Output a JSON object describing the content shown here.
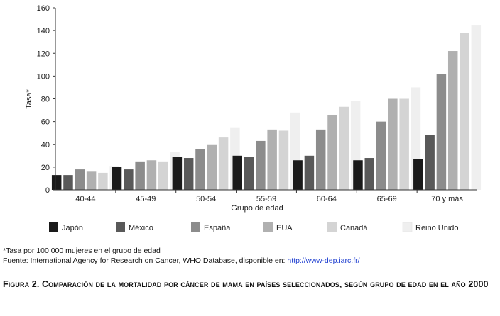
{
  "chart_data": {
    "type": "bar",
    "title": "",
    "xlabel": "Grupo de edad",
    "ylabel": "Tasa*",
    "ylim": [
      0,
      160
    ],
    "yticks": [
      0,
      20,
      40,
      60,
      80,
      100,
      120,
      140,
      160
    ],
    "categories": [
      "40-44",
      "45-49",
      "50-54",
      "55-59",
      "60-64",
      "65-69",
      "70 y más"
    ],
    "series": [
      {
        "name": "Japón",
        "color": "#1a1a1a",
        "values": [
          13,
          20,
          29,
          30,
          26,
          26,
          27
        ]
      },
      {
        "name": "México",
        "color": "#595959",
        "values": [
          13,
          18,
          28,
          29,
          30,
          28,
          48
        ]
      },
      {
        "name": "España",
        "color": "#8c8c8c",
        "values": [
          18,
          25,
          36,
          43,
          53,
          60,
          102
        ]
      },
      {
        "name": "EUA",
        "color": "#b0b0b0",
        "values": [
          16,
          26,
          40,
          53,
          66,
          80,
          122
        ]
      },
      {
        "name": "Canadá",
        "color": "#d4d4d4",
        "values": [
          15,
          25,
          46,
          52,
          73,
          80,
          138
        ]
      },
      {
        "name": "Reino Unido",
        "color": "#efefef",
        "values": [
          21,
          33,
          55,
          68,
          78,
          90,
          145
        ]
      }
    ],
    "legend_position": "bottom",
    "grid": false
  },
  "notes": {
    "rate": "*Tasa por 100 000 mujeres en el grupo de edad",
    "source_prefix": "Fuente: International Agency for Research on Cancer, WHO Database, disponible en: ",
    "source_link": "http://www-dep.iarc.fr/"
  },
  "caption": "Figura 2. Comparación de la mortalidad por cáncer de mama en países seleccionados, según grupo de edad en el año 2000"
}
